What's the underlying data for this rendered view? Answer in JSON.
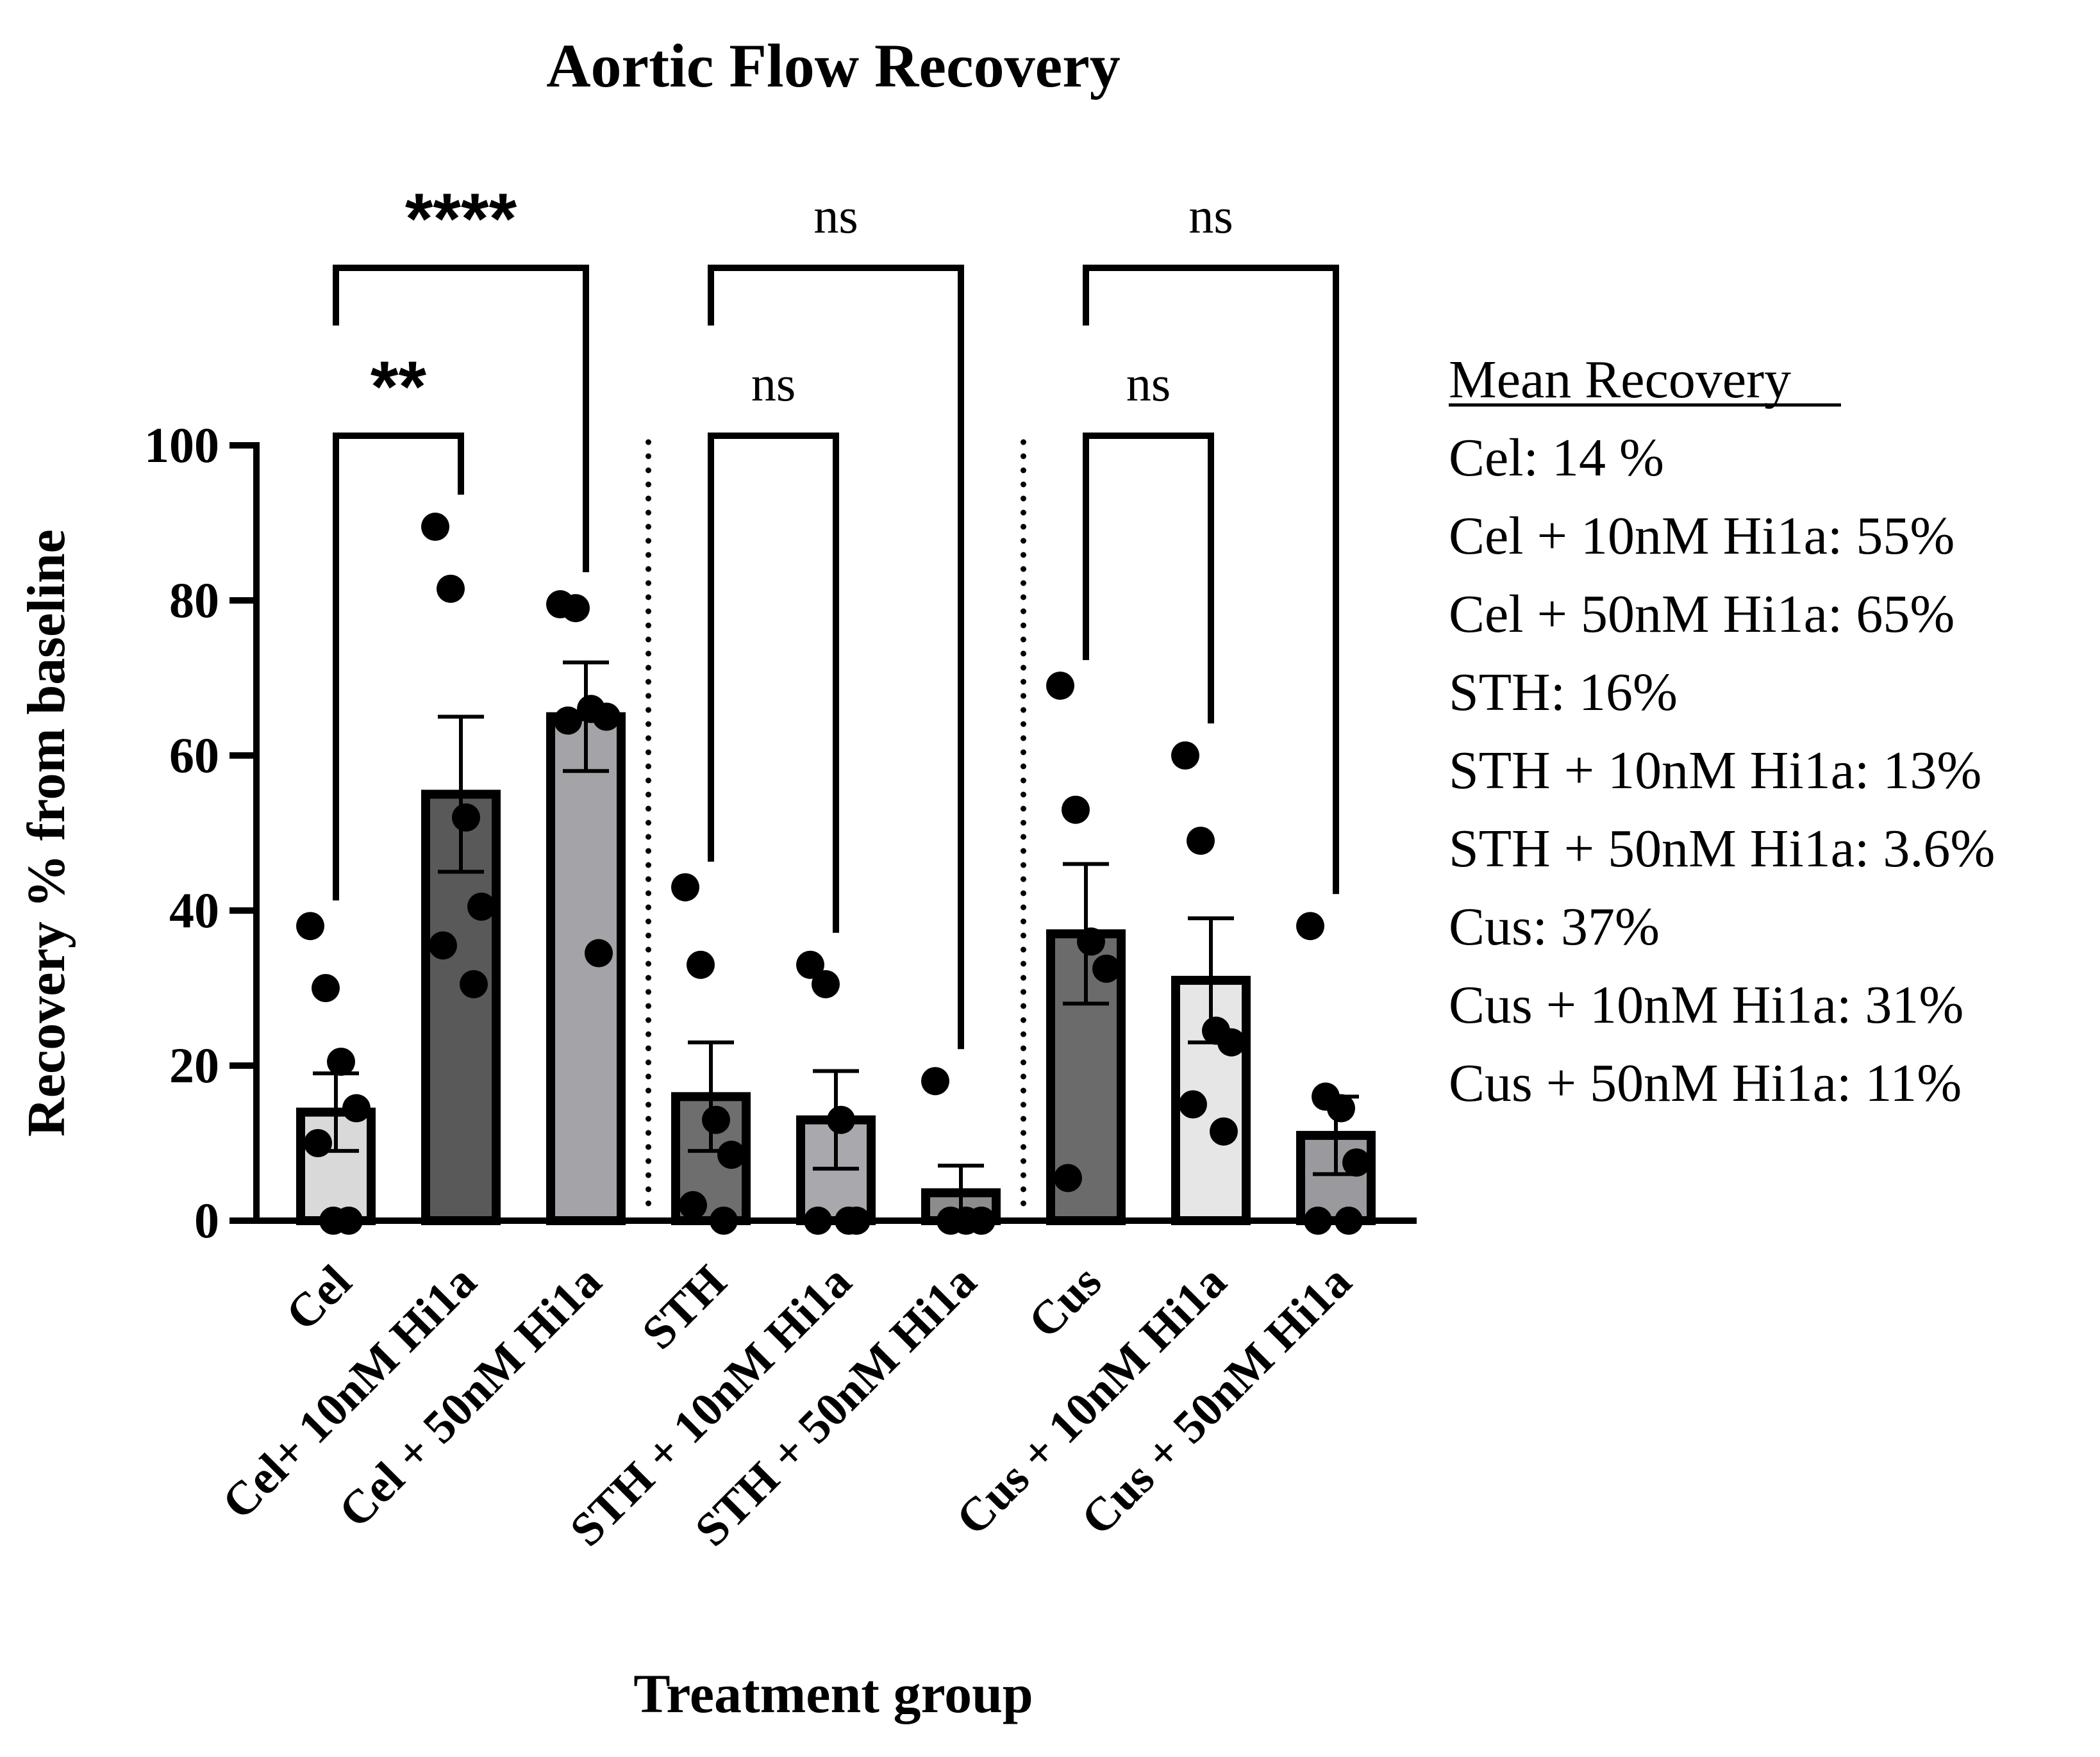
{
  "chart_data": {
    "type": "bar",
    "title": "Aortic Flow Recovery",
    "xlabel": "Treatment group",
    "ylabel": "Recovery % from baseline",
    "ylim": [
      0,
      100
    ],
    "yticks": [
      0,
      20,
      40,
      60,
      80,
      100
    ],
    "yticklabels": [
      "0",
      "20",
      "40",
      "60",
      "80",
      "100"
    ],
    "categories": [
      "Cel",
      "Cel+ 10nM Hi1a",
      "Cel + 50nM Hi1a",
      "STH",
      "STH + 10nM Hi1a",
      "STH + 50nM Hi1a",
      "Cus",
      "Cus + 10nM Hi1a",
      "Cus + 50nM Hi1a"
    ],
    "means": [
      14,
      55,
      65,
      16,
      13,
      3.6,
      37,
      31,
      11
    ],
    "sem": [
      5,
      10,
      7,
      7,
      6.3,
      3.5,
      9,
      8,
      5
    ],
    "fill_colors": [
      "#d9d9d9",
      "#595959",
      "#a3a3a8",
      "#6e6e6e",
      "#a9a9ad",
      "#8c8c8c",
      "#6b6b6b",
      "#e6e6e6",
      "#9a9a9e"
    ],
    "points": [
      [
        38,
        30,
        20.5,
        14.5,
        10,
        0,
        0
      ],
      [
        89.5,
        81.5,
        52,
        40.5,
        35.5,
        30.5
      ],
      [
        79.5,
        79,
        66,
        65,
        64.5,
        34.5
      ],
      [
        43,
        33,
        13,
        8.5,
        2,
        0
      ],
      [
        33,
        30.5,
        13,
        0,
        0,
        0
      ],
      [
        18,
        0,
        0,
        0
      ],
      [
        69,
        53,
        36,
        32.5,
        5.5
      ],
      [
        60,
        49,
        24.5,
        23,
        15,
        11.5
      ],
      [
        38,
        16,
        14.5,
        7.5,
        0,
        0
      ]
    ],
    "comparisons": [
      {
        "from": 0,
        "to": 1,
        "label": "**"
      },
      {
        "from": 0,
        "to": 2,
        "label": "****"
      },
      {
        "from": 3,
        "to": 4,
        "label": "ns"
      },
      {
        "from": 3,
        "to": 5,
        "label": "ns"
      },
      {
        "from": 6,
        "to": 7,
        "label": "ns"
      },
      {
        "from": 6,
        "to": 8,
        "label": "ns"
      }
    ],
    "group_separators_after": [
      2,
      5
    ],
    "legend": {
      "title": "Mean Recovery",
      "entries": [
        "Cel: 14 %",
        "Cel + 10nM Hi1a:  55%",
        "Cel + 50nM Hi1a:  65%",
        "STH:  16%",
        "STH + 10nM Hi1a:  13%",
        "STH + 50nM Hi1a: 3.6%",
        "Cus:  37%",
        "Cus + 10nM Hi1a:  31%",
        "Cus + 50nM Hi1a:  11%"
      ]
    }
  }
}
